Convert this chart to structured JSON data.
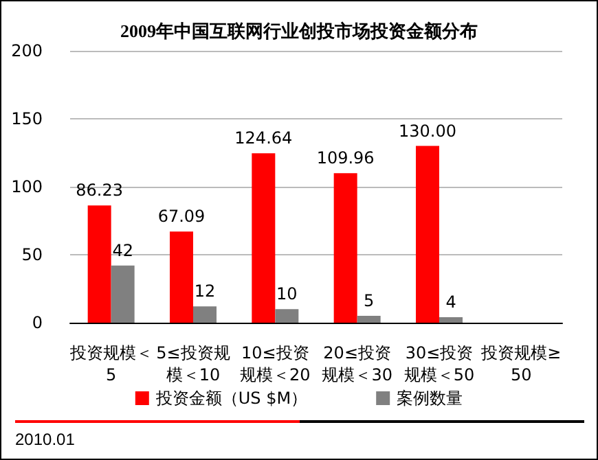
{
  "chart_data": {
    "type": "bar",
    "title": "2009年中国互联网行业创投市场投资金额分布",
    "categories": [
      "投资规模＜5",
      "5≤投资规模＜10",
      "10≤投资规模＜20",
      "20≤投资规模＜30",
      "30≤投资规模＜50",
      "投资规模≥50"
    ],
    "series": [
      {
        "name": "投资金额（US $M）",
        "color": "#ff0000",
        "values": [
          86.23,
          67.09,
          124.64,
          109.96,
          130.0,
          null
        ],
        "value_labels": [
          "86.23",
          "67.09",
          "124.64",
          "109.96",
          "130.00",
          null
        ]
      },
      {
        "name": "案例数量",
        "color": "#808080",
        "values": [
          42,
          12,
          10,
          5,
          4,
          null
        ],
        "value_labels": [
          "42",
          "12",
          "10",
          "5",
          "4",
          null
        ]
      }
    ],
    "ylim": [
      0,
      200
    ],
    "yticks": [
      0,
      50,
      100,
      150,
      200
    ],
    "grid": "y",
    "legend": "bottom",
    "annotations": [
      "2010.01"
    ]
  }
}
